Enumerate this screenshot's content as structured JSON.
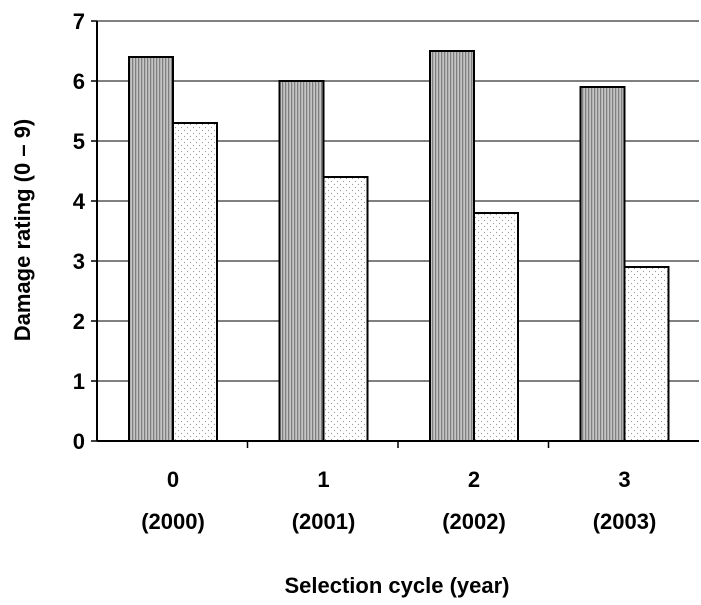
{
  "chart_data": {
    "type": "bar",
    "title": "",
    "xlabel": "Selection cycle (year)",
    "ylabel": "Damage rating (0 – 9)",
    "ylim": [
      0,
      7
    ],
    "yticks": [
      "0",
      "1",
      "2",
      "3",
      "4",
      "5",
      "6",
      "7"
    ],
    "grid": true,
    "categories": [
      {
        "cycle": "0",
        "year": "(2000)"
      },
      {
        "cycle": "1",
        "year": "(2001)"
      },
      {
        "cycle": "2",
        "year": "(2002)"
      },
      {
        "cycle": "3",
        "year": "(2003)"
      }
    ],
    "series": [
      {
        "pattern": "vertical-stripes-gray",
        "values": [
          6.4,
          6.0,
          6.5,
          5.9
        ]
      },
      {
        "pattern": "dotted-white",
        "values": [
          5.3,
          4.4,
          3.8,
          2.9
        ]
      }
    ]
  }
}
